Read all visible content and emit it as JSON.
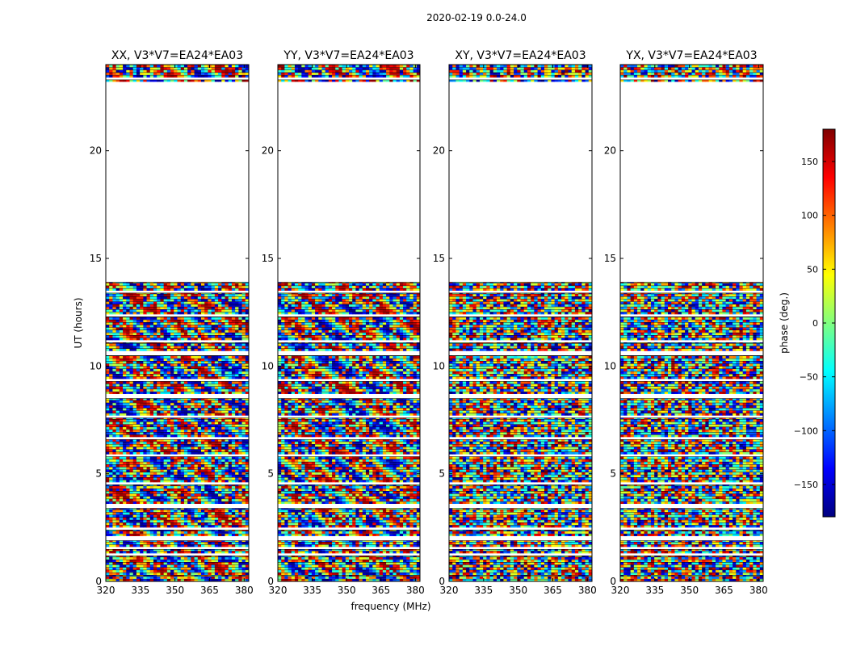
{
  "chart_data": {
    "type": "heatmap",
    "suptitle": "2020-02-19 0.0-24.0",
    "xlabel": "frequency (MHz)",
    "ylabel": "UT (hours)",
    "xlim": [
      320,
      382
    ],
    "ylim": [
      0,
      24
    ],
    "xticks": [
      320,
      335,
      350,
      365,
      380
    ],
    "yticks": [
      0,
      5,
      10,
      15,
      20
    ],
    "panels": [
      {
        "title": "XX, V3*V7=EA24*EA03",
        "pol": "XX"
      },
      {
        "title": "YY, V3*V7=EA24*EA03",
        "pol": "YY"
      },
      {
        "title": "XY, V3*V7=EA24*EA03",
        "pol": "XY"
      },
      {
        "title": "YX, V3*V7=EA24*EA03",
        "pol": "YX"
      }
    ],
    "data_hour_ranges": [
      [
        0.0,
        0.3
      ],
      [
        0.3,
        0.9
      ],
      [
        0.9,
        1.2
      ],
      [
        1.3,
        1.5
      ],
      [
        1.6,
        1.9
      ],
      [
        2.1,
        2.4
      ],
      [
        2.5,
        3.4
      ],
      [
        3.6,
        4.5
      ],
      [
        4.6,
        5.8
      ],
      [
        5.9,
        6.6
      ],
      [
        6.7,
        7.6
      ],
      [
        7.7,
        8.5
      ],
      [
        8.7,
        9.3
      ],
      [
        9.4,
        10.5
      ],
      [
        10.7,
        11.1
      ],
      [
        11.2,
        12.3
      ],
      [
        12.4,
        13.4
      ],
      [
        13.5,
        13.9
      ],
      [
        23.2,
        23.3
      ],
      [
        23.4,
        24.0
      ]
    ],
    "colorbar": {
      "label": "phase (deg.)",
      "range": [
        -180,
        180
      ],
      "ticks": [
        150,
        100,
        50,
        0,
        -50,
        -100,
        -150
      ],
      "tick_labels": [
        "150",
        "100",
        "50",
        "0",
        "−50",
        "−100",
        "−150"
      ],
      "colormap": "jet"
    }
  }
}
